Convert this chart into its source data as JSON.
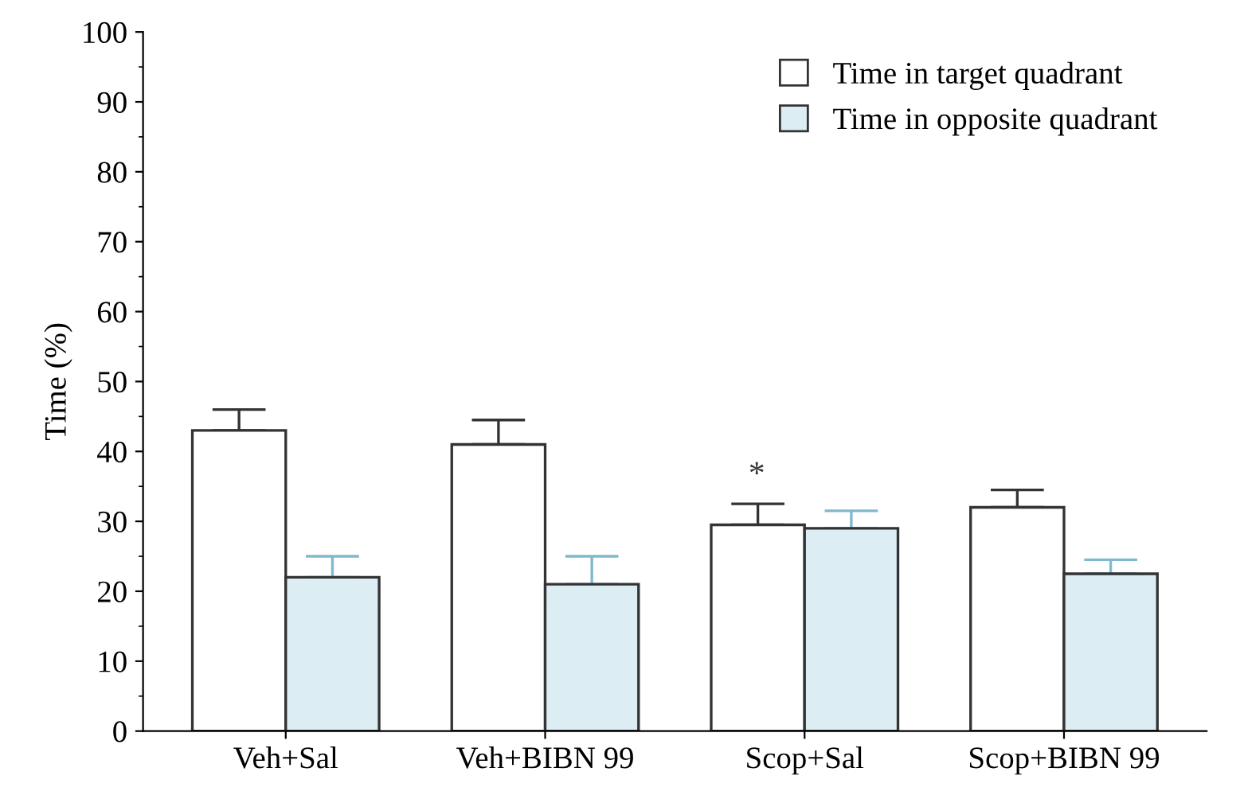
{
  "chart_data": {
    "type": "bar",
    "ylabel": "Time (%)",
    "categories": [
      "Veh+Sal",
      "Veh+BIBN 99",
      "Scop+Sal",
      "Scop+BIBN 99"
    ],
    "series": [
      {
        "name": "Time in target quadrant",
        "color": "#ffffff",
        "values": [
          43,
          41,
          29.5,
          32
        ],
        "errors": [
          [
            43,
            46
          ],
          [
            41,
            44.5
          ],
          [
            29.5,
            32.5
          ],
          [
            32,
            34.5
          ]
        ]
      },
      {
        "name": "Time in opposite quadrant",
        "color": "#dcedf4",
        "values": [
          22,
          21,
          29,
          22.5
        ],
        "errors": [
          [
            22,
            25
          ],
          [
            21,
            25
          ],
          [
            29,
            31.5
          ],
          [
            22.5,
            24.5
          ]
        ]
      }
    ],
    "annotations": [
      "*"
    ],
    "ylim": [
      0,
      100
    ],
    "yticks": [
      0,
      10,
      20,
      30,
      40,
      50,
      60,
      70,
      80,
      90,
      100
    ],
    "grid": false,
    "legend": "top right"
  }
}
